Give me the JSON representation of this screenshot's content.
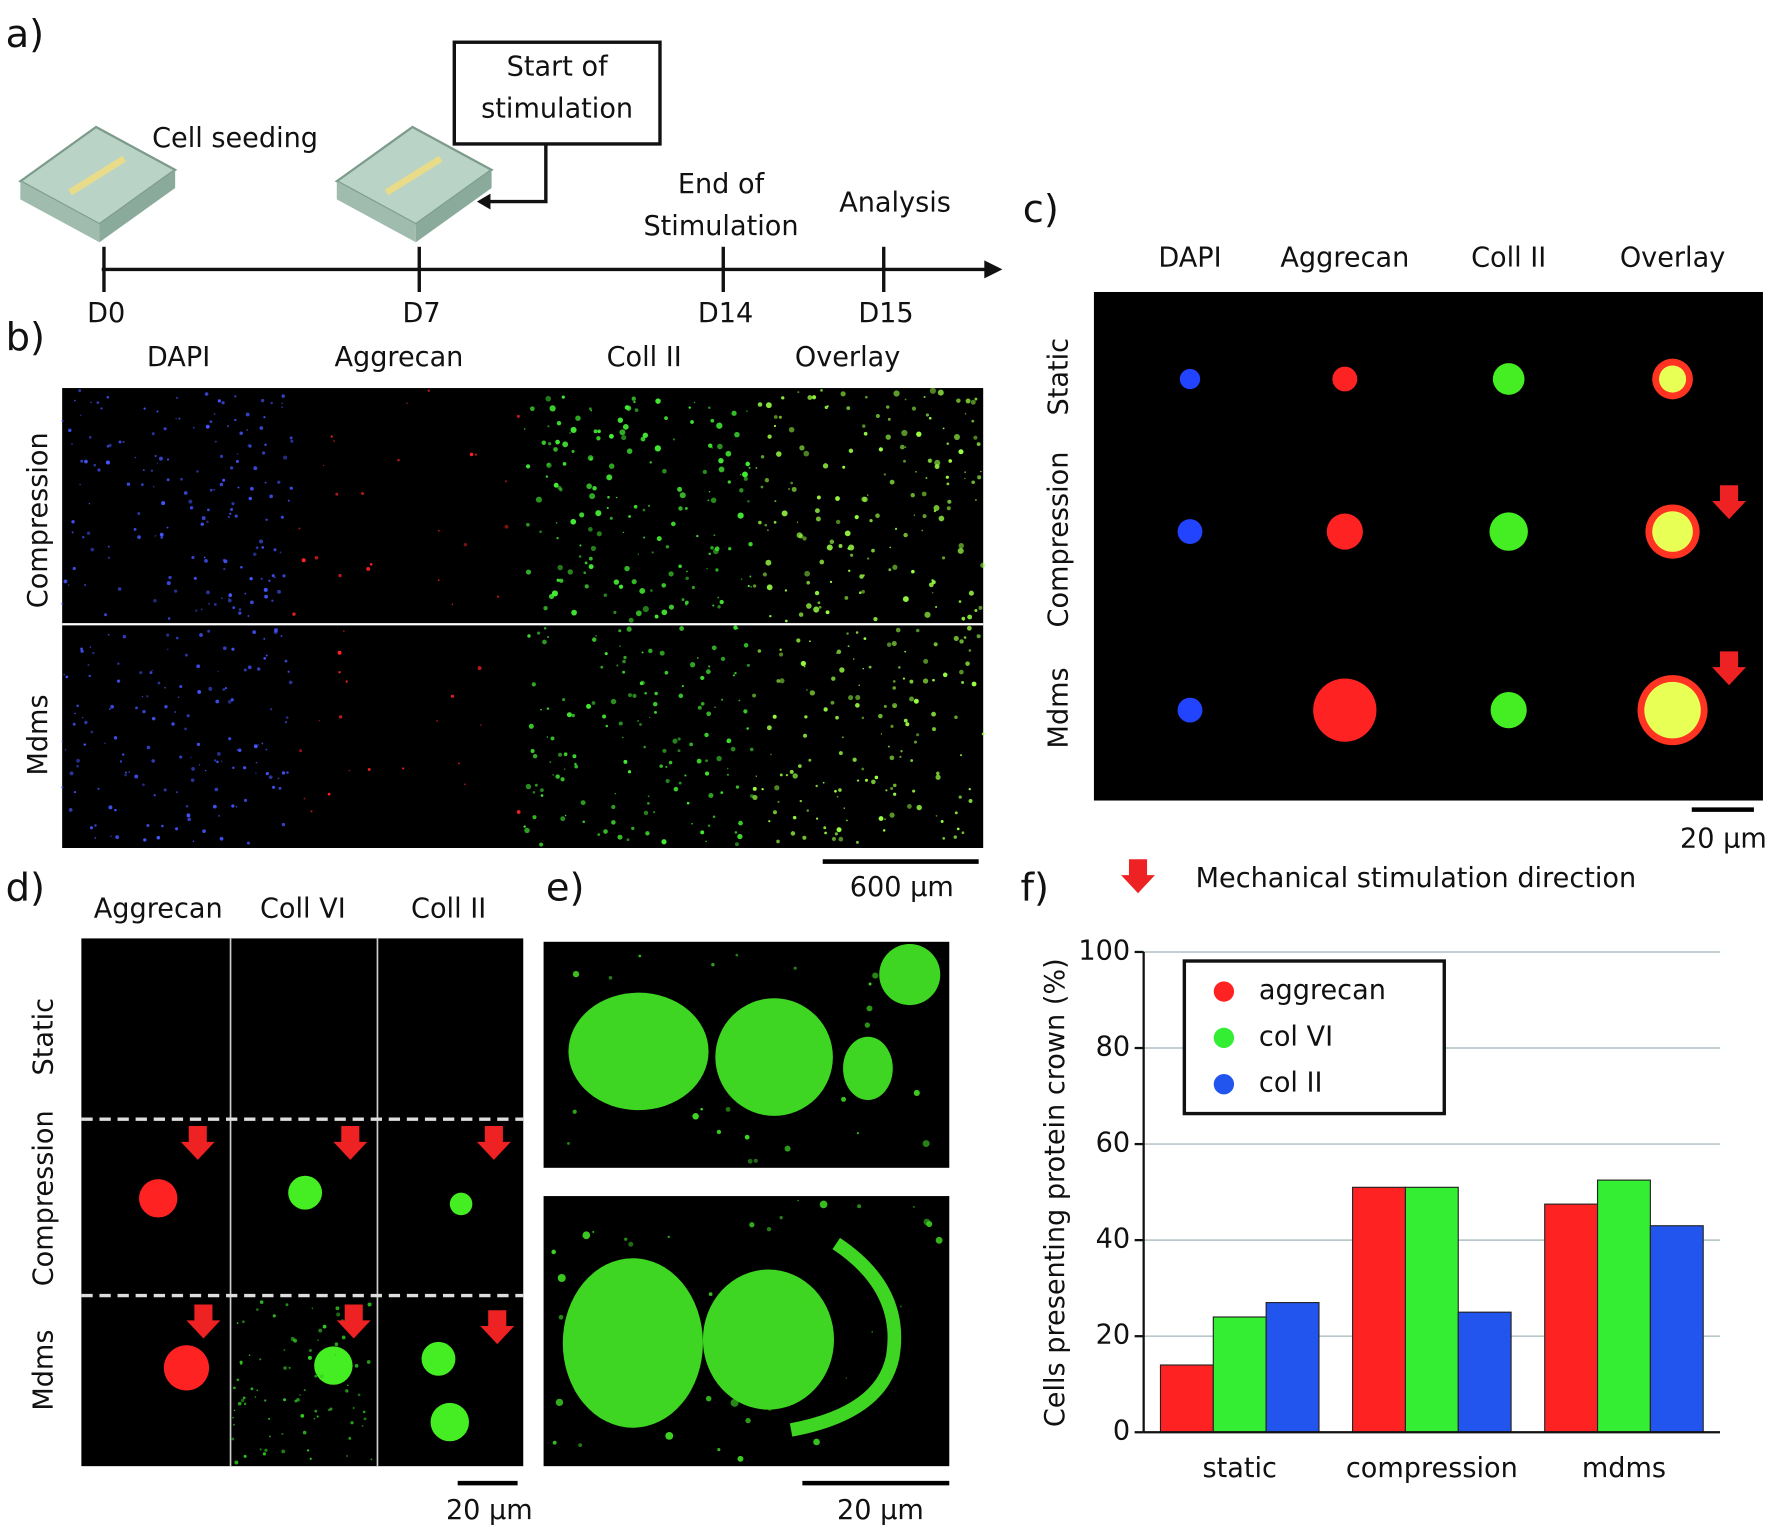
{
  "panel_labels": [
    "a)",
    "b)",
    "c)",
    "d)",
    "e)",
    "f)"
  ],
  "timeline": {
    "events": [
      {
        "lines": [
          "Cell seeding"
        ],
        "day": "D0"
      },
      {
        "lines": [
          "Start of",
          "stimulation"
        ],
        "day": "D7"
      },
      {
        "lines": [
          "End of",
          "Stimulation"
        ],
        "day": "D14"
      },
      {
        "lines": [
          "Analysis"
        ],
        "day": "D15"
      }
    ]
  },
  "panel_b": {
    "columns": [
      "DAPI",
      "Aggrecan",
      "Coll II",
      "Overlay"
    ],
    "rows": [
      "Compression",
      "Mdms"
    ],
    "scale_bar": "600 µm"
  },
  "panel_c": {
    "columns": [
      "DAPI",
      "Aggrecan",
      "Coll II",
      "Overlay"
    ],
    "rows": [
      "Static",
      "Compression",
      "Mdms"
    ],
    "scale_bar": "20 µm"
  },
  "arrow_legend": "Mechanical stimulation direction",
  "panel_d": {
    "columns": [
      "Aggrecan",
      "Coll VI",
      "Coll II"
    ],
    "rows": [
      "Static",
      "Compression",
      "Mdms"
    ],
    "scale_bar": "20 µm"
  },
  "panel_e": {
    "scale_bar": "20 µm"
  },
  "chart_data": {
    "type": "bar",
    "y_label": "Cells presenting protein crown (%)",
    "categories": [
      "static",
      "compression",
      "mdms"
    ],
    "series": [
      {
        "name": "aggrecan",
        "color": "#ff2222",
        "values": [
          14,
          51,
          47.5
        ]
      },
      {
        "name": "col VI",
        "color": "#33ee33",
        "values": [
          24,
          51,
          52.5
        ]
      },
      {
        "name": "col II",
        "color": "#2255ee",
        "values": [
          27,
          25,
          43
        ]
      }
    ],
    "ylim": [
      0,
      100
    ],
    "yticks": [
      0,
      20,
      40,
      60,
      80,
      100
    ],
    "grid": true
  }
}
